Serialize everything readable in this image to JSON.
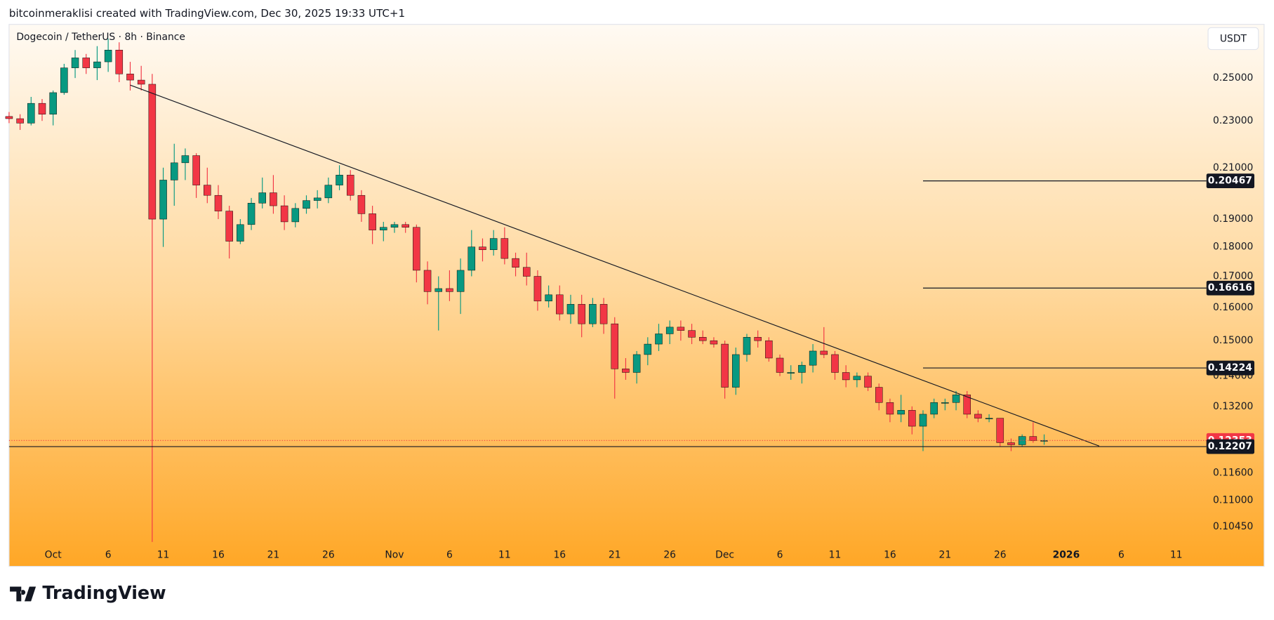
{
  "header": "bitcoinmeraklisi created with TradingView.com, Dec 30, 2025 19:33 UTC+1",
  "logo": "TradingView",
  "chart_data": {
    "type": "candlestick",
    "title": "Dogecoin / TetherUS · 8h · Binance",
    "currency": "USDT",
    "up_color": "#089981",
    "down_color": "#f23645",
    "log_scale": true,
    "x": [
      "2025-09-27",
      "2025-09-28",
      "2025-09-29",
      "2025-09-30",
      "2025-10-01",
      "2025-10-02",
      "2025-10-03",
      "2025-10-04",
      "2025-10-05",
      "2025-10-06",
      "2025-10-07",
      "2025-10-08",
      "2025-10-09",
      "2025-10-10",
      "2025-10-11",
      "2025-10-12",
      "2025-10-13",
      "2025-10-14",
      "2025-10-15",
      "2025-10-16",
      "2025-10-17",
      "2025-10-18",
      "2025-10-19",
      "2025-10-20",
      "2025-10-21",
      "2025-10-22",
      "2025-10-23",
      "2025-10-24",
      "2025-10-25",
      "2025-10-26",
      "2025-10-27",
      "2025-10-28",
      "2025-10-29",
      "2025-10-30",
      "2025-10-31",
      "2025-11-01",
      "2025-11-02",
      "2025-11-03",
      "2025-11-04",
      "2025-11-05",
      "2025-11-06",
      "2025-11-07",
      "2025-11-08",
      "2025-11-09",
      "2025-11-10",
      "2025-11-11",
      "2025-11-12",
      "2025-11-13",
      "2025-11-14",
      "2025-11-15",
      "2025-11-16",
      "2025-11-17",
      "2025-11-18",
      "2025-11-19",
      "2025-11-20",
      "2025-11-21",
      "2025-11-22",
      "2025-11-23",
      "2025-11-24",
      "2025-11-25",
      "2025-11-26",
      "2025-11-27",
      "2025-11-28",
      "2025-11-29",
      "2025-11-30",
      "2025-12-01",
      "2025-12-02",
      "2025-12-03",
      "2025-12-04",
      "2025-12-05",
      "2025-12-06",
      "2025-12-07",
      "2025-12-08",
      "2025-12-09",
      "2025-12-10",
      "2025-12-11",
      "2025-12-12",
      "2025-12-13",
      "2025-12-14",
      "2025-12-15",
      "2025-12-16",
      "2025-12-17",
      "2025-12-18",
      "2025-12-19",
      "2025-12-20",
      "2025-12-21",
      "2025-12-22",
      "2025-12-23",
      "2025-12-24",
      "2025-12-25",
      "2025-12-26",
      "2025-12-27",
      "2025-12-28",
      "2025-12-29",
      "2025-12-30"
    ],
    "open": [
      0.232,
      0.231,
      0.229,
      0.238,
      0.233,
      0.243,
      0.255,
      0.26,
      0.255,
      0.258,
      0.264,
      0.252,
      0.249,
      0.247,
      0.19,
      0.205,
      0.212,
      0.215,
      0.203,
      0.199,
      0.193,
      0.182,
      0.188,
      0.196,
      0.2,
      0.195,
      0.189,
      0.194,
      0.197,
      0.198,
      0.203,
      0.207,
      0.199,
      0.192,
      0.186,
      0.187,
      0.188,
      0.187,
      0.172,
      0.165,
      0.166,
      0.165,
      0.172,
      0.18,
      0.179,
      0.183,
      0.176,
      0.173,
      0.17,
      0.162,
      0.164,
      0.158,
      0.161,
      0.155,
      0.161,
      0.155,
      0.142,
      0.141,
      0.146,
      0.149,
      0.152,
      0.154,
      0.153,
      0.151,
      0.15,
      0.149,
      0.137,
      0.146,
      0.151,
      0.15,
      0.145,
      0.141,
      0.141,
      0.143,
      0.147,
      0.146,
      0.141,
      0.139,
      0.14,
      0.137,
      0.133,
      0.13,
      0.131,
      0.127,
      0.13,
      0.133,
      0.133,
      0.135,
      0.13,
      0.129,
      0.129,
      0.123,
      0.1225,
      0.1245,
      0.1235
    ],
    "high": [
      0.234,
      0.233,
      0.241,
      0.24,
      0.244,
      0.257,
      0.264,
      0.262,
      0.266,
      0.27,
      0.268,
      0.258,
      0.256,
      0.252,
      0.21,
      0.22,
      0.218,
      0.216,
      0.21,
      0.203,
      0.195,
      0.19,
      0.198,
      0.206,
      0.207,
      0.199,
      0.196,
      0.199,
      0.201,
      0.206,
      0.211,
      0.209,
      0.201,
      0.195,
      0.189,
      0.189,
      0.189,
      0.188,
      0.175,
      0.17,
      0.172,
      0.176,
      0.186,
      0.183,
      0.186,
      0.187,
      0.178,
      0.178,
      0.172,
      0.167,
      0.167,
      0.164,
      0.164,
      0.163,
      0.163,
      0.157,
      0.145,
      0.147,
      0.151,
      0.155,
      0.156,
      0.156,
      0.155,
      0.153,
      0.151,
      0.15,
      0.148,
      0.152,
      0.153,
      0.151,
      0.146,
      0.143,
      0.144,
      0.149,
      0.154,
      0.147,
      0.143,
      0.141,
      0.141,
      0.138,
      0.134,
      0.135,
      0.132,
      0.131,
      0.134,
      0.134,
      0.136,
      0.136,
      0.131,
      0.13,
      0.129,
      0.124,
      0.125,
      0.128,
      0.125
    ],
    "low": [
      0.229,
      0.226,
      0.228,
      0.23,
      0.228,
      0.242,
      0.25,
      0.252,
      0.249,
      0.253,
      0.248,
      0.244,
      0.244,
      0.1014,
      0.18,
      0.195,
      0.205,
      0.198,
      0.196,
      0.19,
      0.176,
      0.181,
      0.186,
      0.194,
      0.192,
      0.186,
      0.187,
      0.192,
      0.194,
      0.196,
      0.201,
      0.197,
      0.189,
      0.181,
      0.182,
      0.185,
      0.185,
      0.168,
      0.161,
      0.153,
      0.162,
      0.158,
      0.17,
      0.175,
      0.177,
      0.174,
      0.17,
      0.167,
      0.159,
      0.16,
      0.156,
      0.155,
      0.151,
      0.154,
      0.152,
      0.134,
      0.139,
      0.138,
      0.143,
      0.147,
      0.149,
      0.15,
      0.149,
      0.149,
      0.148,
      0.134,
      0.135,
      0.144,
      0.148,
      0.144,
      0.14,
      0.139,
      0.138,
      0.141,
      0.145,
      0.139,
      0.137,
      0.137,
      0.136,
      0.131,
      0.128,
      0.128,
      0.125,
      0.121,
      0.129,
      0.131,
      0.131,
      0.129,
      0.128,
      0.128,
      0.122,
      0.121,
      0.122,
      0.123,
      0.1225
    ],
    "close": [
      0.231,
      0.229,
      0.238,
      0.233,
      0.243,
      0.255,
      0.26,
      0.255,
      0.258,
      0.264,
      0.252,
      0.249,
      0.247,
      0.19,
      0.205,
      0.212,
      0.215,
      0.203,
      0.199,
      0.193,
      0.182,
      0.188,
      0.196,
      0.2,
      0.195,
      0.189,
      0.194,
      0.197,
      0.198,
      0.203,
      0.207,
      0.199,
      0.192,
      0.186,
      0.187,
      0.188,
      0.187,
      0.172,
      0.165,
      0.166,
      0.165,
      0.172,
      0.18,
      0.179,
      0.183,
      0.176,
      0.173,
      0.17,
      0.162,
      0.164,
      0.158,
      0.161,
      0.155,
      0.161,
      0.155,
      0.142,
      0.141,
      0.146,
      0.149,
      0.152,
      0.154,
      0.153,
      0.151,
      0.15,
      0.149,
      0.137,
      0.146,
      0.151,
      0.15,
      0.145,
      0.141,
      0.141,
      0.143,
      0.147,
      0.146,
      0.141,
      0.139,
      0.14,
      0.137,
      0.133,
      0.13,
      0.131,
      0.127,
      0.13,
      0.133,
      0.133,
      0.135,
      0.13,
      0.129,
      0.129,
      0.123,
      0.1225,
      0.1245,
      0.1235,
      0.12353
    ],
    "xlim": [
      "2025-09-27",
      "2026-01-13"
    ],
    "xticks": [
      {
        "value": "2025-10-01",
        "label": "Oct"
      },
      {
        "value": "2025-10-06",
        "label": "6"
      },
      {
        "value": "2025-10-11",
        "label": "11"
      },
      {
        "value": "2025-10-16",
        "label": "16"
      },
      {
        "value": "2025-10-21",
        "label": "21"
      },
      {
        "value": "2025-10-26",
        "label": "26"
      },
      {
        "value": "2025-11-01",
        "label": "Nov"
      },
      {
        "value": "2025-11-06",
        "label": "6"
      },
      {
        "value": "2025-11-11",
        "label": "11"
      },
      {
        "value": "2025-11-16",
        "label": "16"
      },
      {
        "value": "2025-11-21",
        "label": "21"
      },
      {
        "value": "2025-11-26",
        "label": "26"
      },
      {
        "value": "2025-12-01",
        "label": "Dec"
      },
      {
        "value": "2025-12-06",
        "label": "6"
      },
      {
        "value": "2025-12-11",
        "label": "11"
      },
      {
        "value": "2025-12-16",
        "label": "16"
      },
      {
        "value": "2025-12-21",
        "label": "21"
      },
      {
        "value": "2025-12-26",
        "label": "26"
      },
      {
        "value": "2026-01-01",
        "label": "2026"
      },
      {
        "value": "2026-01-06",
        "label": "6"
      },
      {
        "value": "2026-01-11",
        "label": "11"
      }
    ],
    "ylim": [
      0.0967,
      0.2775
    ],
    "yticks": [
      {
        "value": 0.25,
        "label": "0.25000"
      },
      {
        "value": 0.23,
        "label": "0.23000"
      },
      {
        "value": 0.21,
        "label": "0.21000"
      },
      {
        "value": 0.19,
        "label": "0.19000"
      },
      {
        "value": 0.18,
        "label": "0.18000"
      },
      {
        "value": 0.17,
        "label": "0.17000"
      },
      {
        "value": 0.16,
        "label": "0.16000"
      },
      {
        "value": 0.15,
        "label": "0.15000"
      },
      {
        "value": 0.14,
        "label": "0.14000"
      },
      {
        "value": 0.132,
        "label": "0.13200"
      },
      {
        "value": 0.116,
        "label": "0.11600"
      },
      {
        "value": 0.11,
        "label": "0.11000"
      },
      {
        "value": 0.1045,
        "label": "0.10450"
      }
    ],
    "levels": [
      {
        "value": 0.20467,
        "start": "2025-12-19"
      },
      {
        "value": 0.16616,
        "start": "2025-12-19"
      },
      {
        "value": 0.14224,
        "start": "2025-12-19"
      }
    ],
    "support_level": 0.12207,
    "last_price": 0.12353,
    "trendline": {
      "x": [
        "2025-10-08",
        "2026-01-04"
      ],
      "y": [
        0.2466,
        0.1222
      ]
    }
  }
}
